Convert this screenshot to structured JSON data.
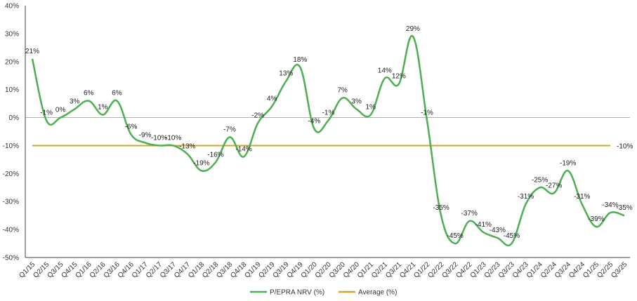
{
  "chart_data": {
    "type": "line",
    "title": "",
    "xlabel": "",
    "ylabel": "",
    "ylim": [
      -50,
      40
    ],
    "yticks": [
      40,
      30,
      20,
      10,
      0,
      -10,
      -20,
      -30,
      -40,
      -50
    ],
    "ytick_labels": [
      "40%",
      "30%",
      "20%",
      "10%",
      "0%",
      "-10%",
      "-20%",
      "-30%",
      "-40%",
      "-50%"
    ],
    "categories": [
      "Q1/15",
      "Q2/15",
      "Q3/15",
      "Q4/15",
      "Q1/16",
      "Q2/16",
      "Q3/16",
      "Q4/16",
      "Q1/17",
      "Q2/17",
      "Q3/17",
      "Q4/17",
      "Q1/18",
      "Q2/18",
      "Q3/18",
      "Q4/18",
      "Q1/19",
      "Q2/19",
      "Q3/19",
      "Q4/19",
      "Q1/20",
      "Q2/20",
      "Q3/20",
      "Q4/20",
      "Q1/21",
      "Q2/21",
      "Q3/21",
      "Q4/21",
      "Q1/22",
      "Q2/22",
      "Q3/22",
      "Q4/22",
      "Q1/23",
      "Q2/23",
      "Q3/23",
      "Q4/23",
      "Q1/24",
      "Q2/24",
      "Q3/24",
      "Q4/24",
      "Q1/25",
      "Q2/25",
      "Q3/25"
    ],
    "series": [
      {
        "name": "P/EPRA NRV (%)",
        "color": "#4caf50",
        "values": [
          21,
          -1,
          0,
          3,
          6,
          1,
          6,
          -6,
          -9,
          -10,
          -10,
          -13,
          -19,
          -16,
          -7,
          -14,
          -2,
          4,
          13,
          18,
          -4,
          -1,
          7,
          3,
          1,
          14,
          12,
          29,
          -1,
          -35,
          -45,
          -37,
          -41,
          -43,
          -45,
          -31,
          -25,
          -27,
          -19,
          -31,
          -39,
          -34,
          -35
        ],
        "labels": [
          "21%",
          "-1%",
          "0%",
          "3%",
          "6%",
          "1%",
          "6%",
          "-6%",
          "-9%",
          "-10%",
          "-10%",
          "-13%",
          "-19%",
          "-16%",
          "-7%",
          "-14%",
          "-2%",
          "4%",
          "13%",
          "18%",
          "-4%",
          "-1%",
          "7%",
          "3%",
          "1%",
          "14%",
          "12%",
          "29%",
          "-1%",
          "-35%",
          "-45%",
          "-37%",
          "-41%",
          "-43%",
          "-45%",
          "-31%",
          "-25%",
          "-27%",
          "-19%",
          "-31%",
          "-39%",
          "-34%",
          "-35%"
        ]
      },
      {
        "name": "Average (%)",
        "color": "#d4a630",
        "value": -10,
        "label": "-10%"
      }
    ],
    "zero_line_color": "#b0b0b0",
    "axis_color": "#404040",
    "legend": [
      "P/EPRA NRV (%)",
      "Average (%)"
    ],
    "legend_position": "bottom-center",
    "grid": false
  }
}
